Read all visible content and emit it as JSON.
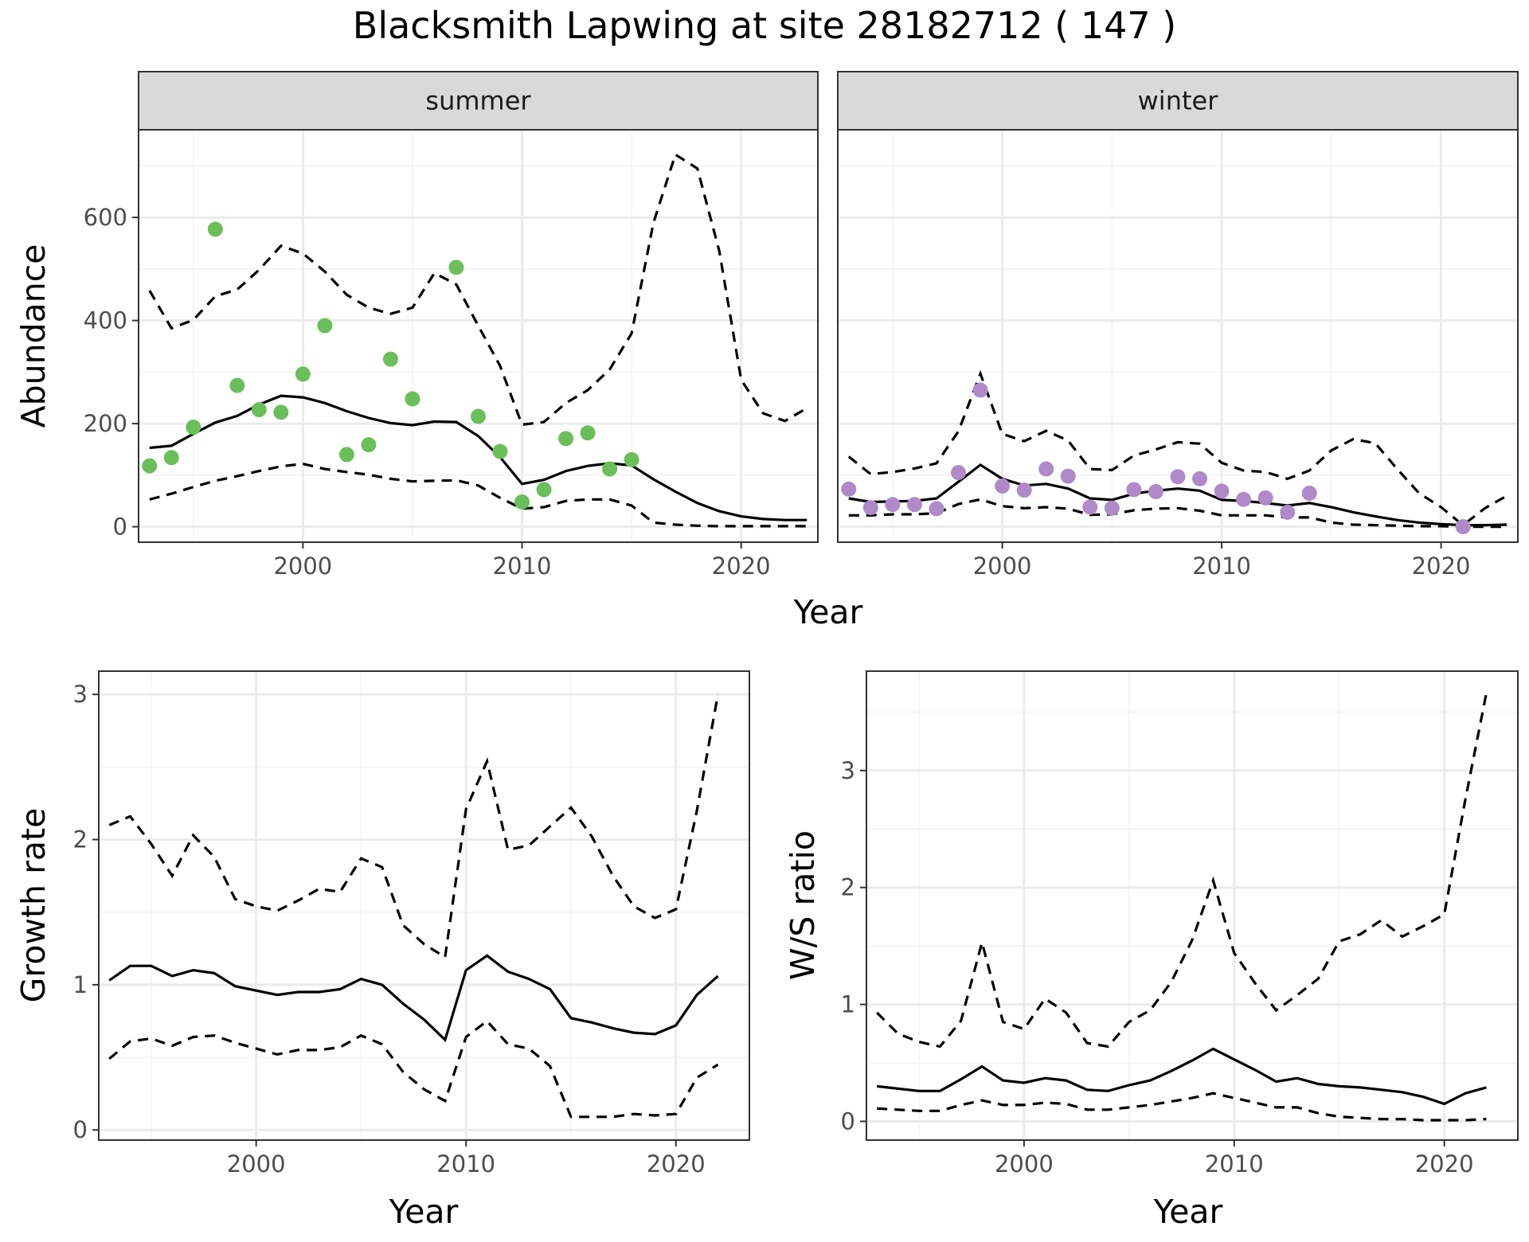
{
  "title": "Blacksmith Lapwing at site 28182712 ( 147 )",
  "chart_data": [
    {
      "id": "summer",
      "type": "line+scatter",
      "strip_label": "summer",
      "xlabel": "Year",
      "ylabel": "Abundance",
      "xlim": [
        1992.5,
        2023.5
      ],
      "ylim": [
        -30,
        770
      ],
      "xticks": [
        2000,
        2010,
        2020
      ],
      "yticks": [
        0,
        200,
        400,
        600
      ],
      "point_color": "#6abf5a",
      "points": {
        "x": [
          1993,
          1994,
          1995,
          1996,
          1997,
          1998,
          1999,
          2000,
          2001,
          2002,
          2003,
          2004,
          2005,
          2007,
          2008,
          2009,
          2010,
          2011,
          2012,
          2013,
          2014,
          2015
        ],
        "y": [
          118,
          134,
          193,
          577,
          274,
          227,
          222,
          296,
          390,
          140,
          159,
          325,
          248,
          503,
          214,
          146,
          48,
          72,
          171,
          182,
          112,
          130
        ]
      },
      "x": [
        1993,
        1994,
        1995,
        1996,
        1997,
        1998,
        1999,
        2000,
        2001,
        2002,
        2003,
        2004,
        2005,
        2006,
        2007,
        2008,
        2009,
        2010,
        2011,
        2012,
        2013,
        2014,
        2015,
        2016,
        2017,
        2018,
        2019,
        2020,
        2021,
        2022,
        2023
      ],
      "mean": [
        153,
        157,
        180,
        202,
        215,
        237,
        254,
        251,
        240,
        224,
        211,
        201,
        197,
        204,
        203,
        176,
        135,
        83,
        91,
        108,
        118,
        123,
        119,
        92,
        68,
        46,
        30,
        20,
        15,
        13,
        13
      ],
      "lower": [
        53,
        64,
        77,
        89,
        98,
        108,
        117,
        122,
        112,
        106,
        101,
        93,
        88,
        89,
        90,
        80,
        56,
        35,
        38,
        50,
        53,
        53,
        41,
        8,
        4,
        2,
        1,
        1,
        1,
        1,
        1
      ],
      "upper": [
        458,
        385,
        401,
        447,
        460,
        498,
        545,
        530,
        495,
        450,
        425,
        413,
        425,
        492,
        470,
        390,
        312,
        198,
        203,
        240,
        265,
        305,
        375,
        590,
        722,
        695,
        535,
        285,
        220,
        205,
        230
      ]
    },
    {
      "id": "winter",
      "type": "line+scatter",
      "strip_label": "winter",
      "xlabel": "Year",
      "ylabel": "Abundance",
      "xlim": [
        1992.5,
        2023.5
      ],
      "ylim": [
        -30,
        770
      ],
      "xticks": [
        2000,
        2010,
        2020
      ],
      "yticks": [
        0,
        200,
        400,
        600
      ],
      "point_color": "#b08ac8",
      "points": {
        "x": [
          1993,
          1994,
          1995,
          1996,
          1997,
          1998,
          1999,
          2000,
          2001,
          2002,
          2003,
          2004,
          2005,
          2006,
          2007,
          2008,
          2009,
          2010,
          2011,
          2012,
          2013,
          2014,
          2021
        ],
        "y": [
          73,
          37,
          43,
          43,
          35,
          105,
          265,
          79,
          71,
          112,
          98,
          38,
          36,
          72,
          68,
          97,
          93,
          69,
          53,
          56,
          28,
          65,
          0
        ]
      },
      "x": [
        1993,
        1994,
        1995,
        1996,
        1997,
        1998,
        1999,
        2000,
        2001,
        2002,
        2003,
        2004,
        2005,
        2006,
        2007,
        2008,
        2009,
        2010,
        2011,
        2012,
        2013,
        2014,
        2015,
        2016,
        2017,
        2018,
        2019,
        2020,
        2021,
        2022,
        2023
      ],
      "mean": [
        55,
        48,
        49,
        50,
        55,
        87,
        120,
        93,
        80,
        83,
        74,
        55,
        52,
        64,
        70,
        74,
        70,
        52,
        50,
        46,
        41,
        46,
        38,
        28,
        20,
        13,
        8,
        5,
        3,
        3,
        4
      ],
      "lower": [
        22,
        22,
        24,
        24,
        26,
        44,
        53,
        40,
        36,
        38,
        35,
        23,
        24,
        32,
        35,
        36,
        31,
        22,
        22,
        22,
        18,
        18,
        8,
        4,
        3,
        2,
        1,
        1,
        0,
        0,
        0
      ],
      "upper": [
        136,
        102,
        106,
        113,
        123,
        185,
        297,
        180,
        166,
        186,
        167,
        112,
        110,
        138,
        150,
        164,
        161,
        124,
        109,
        106,
        93,
        109,
        148,
        170,
        162,
        112,
        65,
        38,
        3,
        36,
        60
      ]
    },
    {
      "id": "growth",
      "type": "line",
      "xlabel": "Year",
      "ylabel": "Growth rate",
      "xlim": [
        1992.5,
        2023.5
      ],
      "ylim": [
        -0.07,
        3.16
      ],
      "xticks": [
        2000,
        2010,
        2020
      ],
      "yticks": [
        0,
        1,
        2,
        3
      ],
      "x": [
        1993,
        1994,
        1995,
        1996,
        1997,
        1998,
        1999,
        2000,
        2001,
        2002,
        2003,
        2004,
        2005,
        2006,
        2007,
        2008,
        2009,
        2010,
        2011,
        2012,
        2013,
        2014,
        2015,
        2016,
        2017,
        2018,
        2019,
        2020,
        2021,
        2022
      ],
      "mean": [
        1.03,
        1.13,
        1.13,
        1.06,
        1.1,
        1.08,
        0.99,
        0.96,
        0.93,
        0.95,
        0.95,
        0.97,
        1.04,
        1.0,
        0.87,
        0.76,
        0.62,
        1.1,
        1.2,
        1.09,
        1.04,
        0.97,
        0.77,
        0.74,
        0.7,
        0.67,
        0.66,
        0.72,
        0.93,
        1.06
      ],
      "lower": [
        0.49,
        0.61,
        0.63,
        0.58,
        0.64,
        0.65,
        0.6,
        0.56,
        0.52,
        0.55,
        0.55,
        0.57,
        0.65,
        0.59,
        0.4,
        0.28,
        0.2,
        0.64,
        0.75,
        0.59,
        0.56,
        0.44,
        0.09,
        0.09,
        0.09,
        0.11,
        0.1,
        0.11,
        0.36,
        0.45
      ],
      "upper": [
        2.1,
        2.16,
        1.97,
        1.75,
        2.03,
        1.88,
        1.59,
        1.54,
        1.51,
        1.58,
        1.66,
        1.64,
        1.87,
        1.81,
        1.41,
        1.28,
        1.19,
        2.21,
        2.54,
        1.93,
        1.96,
        2.09,
        2.22,
        2.02,
        1.75,
        1.54,
        1.46,
        1.52,
        2.2,
        3.0
      ]
    },
    {
      "id": "ws",
      "type": "line",
      "xlabel": "Year",
      "ylabel": "W/S ratio",
      "xlim": [
        1992.5,
        2023.5
      ],
      "ylim": [
        -0.16,
        3.85
      ],
      "xticks": [
        2000,
        2010,
        2020
      ],
      "yticks": [
        0,
        1,
        2,
        3
      ],
      "x": [
        1993,
        1994,
        1995,
        1996,
        1997,
        1998,
        1999,
        2000,
        2001,
        2002,
        2003,
        2004,
        2005,
        2006,
        2007,
        2008,
        2009,
        2010,
        2011,
        2012,
        2013,
        2014,
        2015,
        2016,
        2017,
        2018,
        2019,
        2020,
        2021,
        2022
      ],
      "mean": [
        0.3,
        0.28,
        0.26,
        0.26,
        0.36,
        0.47,
        0.35,
        0.33,
        0.37,
        0.35,
        0.27,
        0.26,
        0.31,
        0.35,
        0.43,
        0.52,
        0.62,
        0.53,
        0.44,
        0.34,
        0.37,
        0.32,
        0.3,
        0.29,
        0.27,
        0.25,
        0.21,
        0.15,
        0.24,
        0.29
      ],
      "lower": [
        0.11,
        0.1,
        0.09,
        0.09,
        0.14,
        0.18,
        0.14,
        0.14,
        0.16,
        0.15,
        0.1,
        0.1,
        0.12,
        0.14,
        0.17,
        0.2,
        0.24,
        0.2,
        0.16,
        0.12,
        0.12,
        0.07,
        0.04,
        0.03,
        0.02,
        0.02,
        0.01,
        0.01,
        0.01,
        0.02
      ],
      "upper": [
        0.93,
        0.75,
        0.68,
        0.64,
        0.86,
        1.53,
        0.85,
        0.79,
        1.05,
        0.93,
        0.67,
        0.64,
        0.85,
        0.95,
        1.19,
        1.55,
        2.06,
        1.44,
        1.18,
        0.95,
        1.08,
        1.22,
        1.54,
        1.6,
        1.72,
        1.58,
        1.67,
        1.77,
        2.75,
        3.66
      ]
    }
  ]
}
